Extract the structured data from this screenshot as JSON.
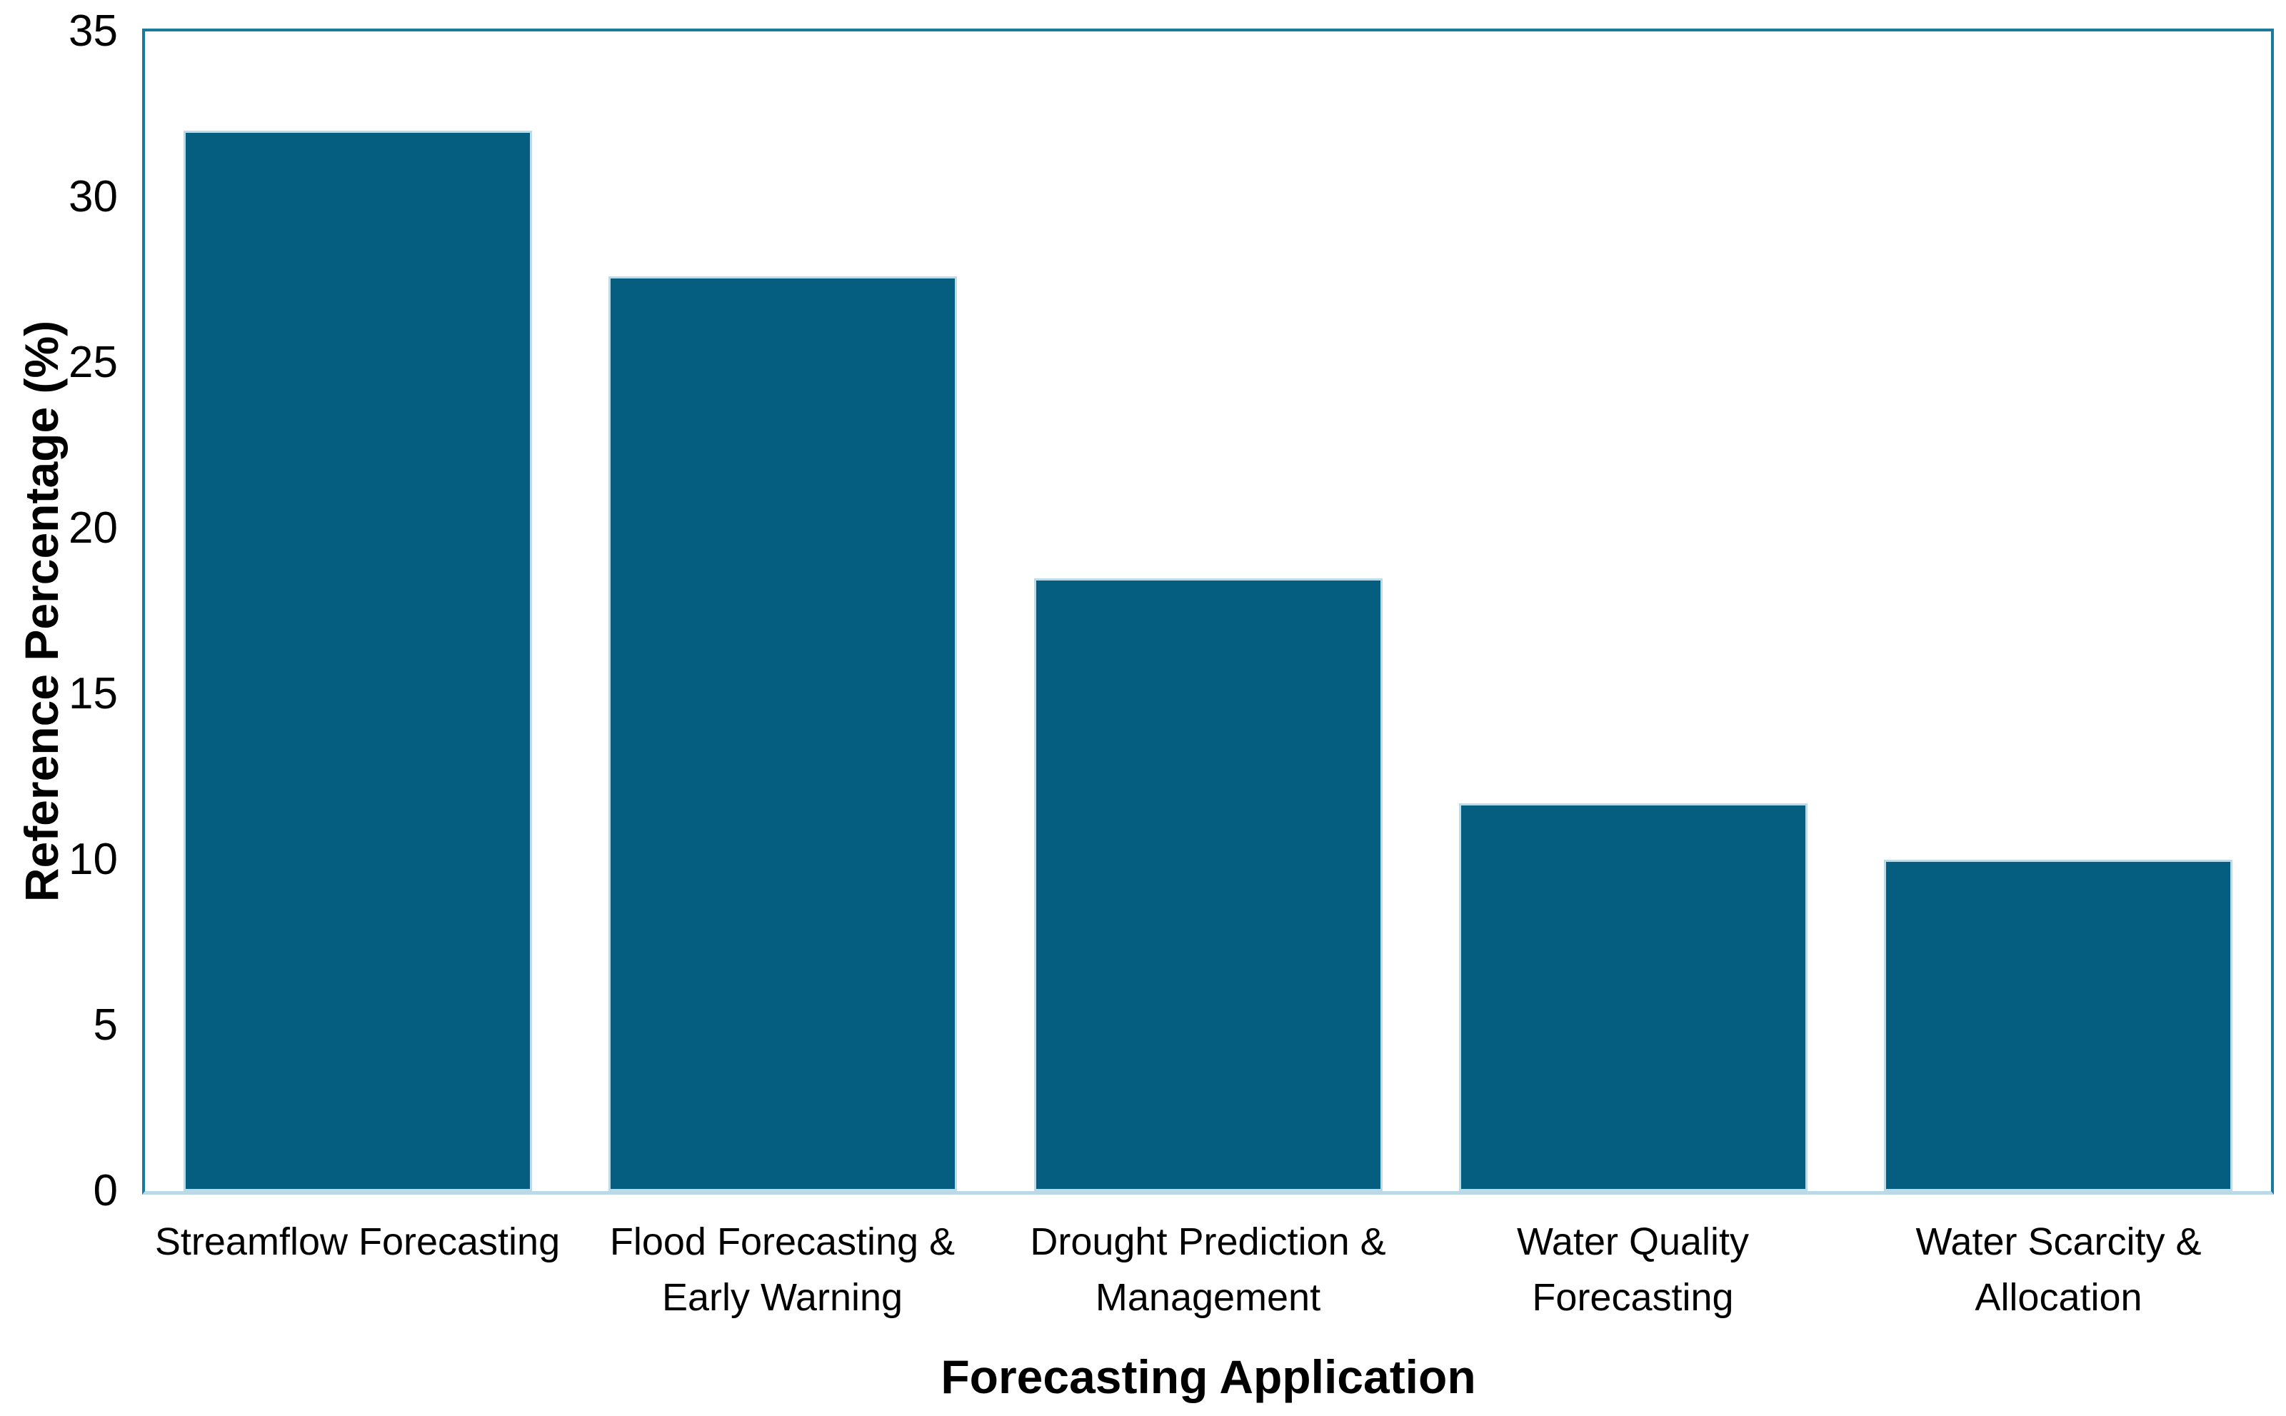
{
  "chart_data": {
    "type": "bar",
    "title": "",
    "categories": [
      "Streamflow Forecasting",
      "Flood Forecasting & Early Warning",
      "Drought Prediction & Management",
      "Water Quality Forecasting",
      "Water Scarcity & Allocation"
    ],
    "category_lines": [
      [
        "Streamflow Forecasting"
      ],
      [
        "Flood Forecasting &",
        "Early Warning"
      ],
      [
        "Drought Prediction &",
        "Management"
      ],
      [
        "Water Quality",
        "Forecasting"
      ],
      [
        "Water Scarcity &",
        "Allocation"
      ]
    ],
    "values": [
      32,
      27.6,
      18.5,
      11.7,
      10
    ],
    "xlabel": "Forecasting Application",
    "ylabel": "Reference Percentage (%)",
    "ylim": [
      0,
      35
    ],
    "yticks": [
      0,
      5,
      10,
      15,
      20,
      25,
      30,
      35
    ],
    "grid": false,
    "legend_position": "none"
  },
  "colors": {
    "bar_fill": "#055e80",
    "bar_edge": "#bcdbe8",
    "plot_border": "#1a7a9c",
    "x_axis_line": "#bcd9e8",
    "text": "#000000",
    "background": "#ffffff"
  }
}
